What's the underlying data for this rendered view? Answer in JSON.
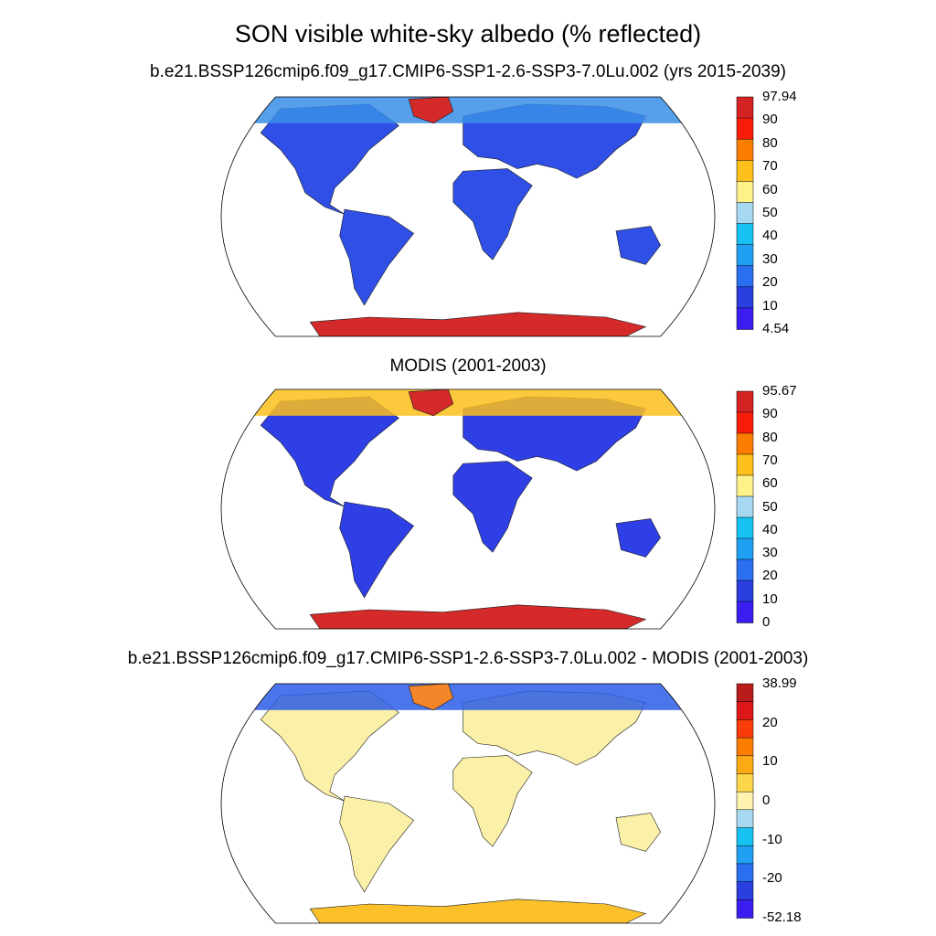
{
  "title": "SON visible white-sky albedo (% reflected)",
  "panels": [
    {
      "id": "model",
      "subtitle": "b.e21.BSSP126cmip6.f09_g17.CMIP6-SSP1-2.6-SSP3-7.0Lu.002 (yrs 2015-2039)",
      "colorbar": {
        "colors": [
          "#3a1ef0",
          "#2b3fe0",
          "#2a6ff0",
          "#1fa0f2",
          "#16c2f2",
          "#a6d8f2",
          "#fff28a",
          "#fcbf1c",
          "#fc7d00",
          "#fa1e0a",
          "#d42323"
        ],
        "labels": [
          "4.54",
          "10",
          "20",
          "30",
          "40",
          "50",
          "60",
          "70",
          "80",
          "90",
          "97.94"
        ]
      }
    },
    {
      "id": "obs",
      "subtitle": "MODIS (2001-2003)",
      "colorbar": {
        "colors": [
          "#3a1ef0",
          "#2b3fe0",
          "#2a6ff0",
          "#1fa0f2",
          "#16c2f2",
          "#a6d8f2",
          "#fff28a",
          "#fcbf1c",
          "#fc7d00",
          "#fa1e0a",
          "#d42323"
        ],
        "labels": [
          "0",
          "10",
          "20",
          "30",
          "40",
          "50",
          "60",
          "70",
          "80",
          "90",
          "95.67"
        ]
      }
    },
    {
      "id": "diff",
      "subtitle": "b.e21.BSSP126cmip6.f09_g17.CMIP6-SSP1-2.6-SSP3-7.0Lu.002 - MODIS (2001-2003)",
      "colorbar": {
        "colors": [
          "#3a1ef0",
          "#2b3fe0",
          "#2a6ff0",
          "#1fa0f2",
          "#16c2f2",
          "#a6d8f2",
          "#fff3b0",
          "#fcd54a",
          "#fcaa14",
          "#fc7d00",
          "#fa3c0a",
          "#de1818",
          "#b81c1c"
        ],
        "labels": [
          "-52.18",
          "",
          "-20",
          "",
          "-10",
          "",
          "0",
          "",
          "10",
          "",
          "20",
          "",
          "38.99"
        ]
      }
    }
  ],
  "colors": {
    "land_model": "#2f4fe6",
    "land_obs": "#2f3fe6",
    "land_diff": "#fbf0a8",
    "antarctica": "#d42a2a",
    "greenland": "#d42a2a",
    "arctic_model": "#3a8ee8",
    "arctic_obs": "#fcbf1c",
    "arctic_diff": "#2a5de8",
    "antarctica_diff": "#fcc12a",
    "greenland_diff": "#f4862a"
  }
}
